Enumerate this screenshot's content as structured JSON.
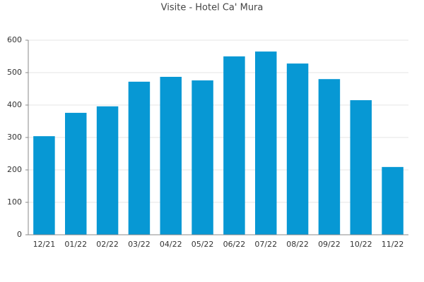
{
  "chart_data": {
    "type": "bar",
    "title": "Visite - Hotel Ca' Mura",
    "categories": [
      "12/21",
      "01/22",
      "02/22",
      "03/22",
      "04/22",
      "05/22",
      "06/22",
      "07/22",
      "08/22",
      "09/22",
      "10/22",
      "11/22"
    ],
    "values": [
      304,
      376,
      396,
      472,
      487,
      476,
      550,
      565,
      528,
      480,
      415,
      209
    ],
    "color": "#0798d4",
    "ylim": [
      0,
      600
    ],
    "yticks": [
      0,
      100,
      200,
      300,
      400,
      500,
      600
    ],
    "grid": true
  }
}
